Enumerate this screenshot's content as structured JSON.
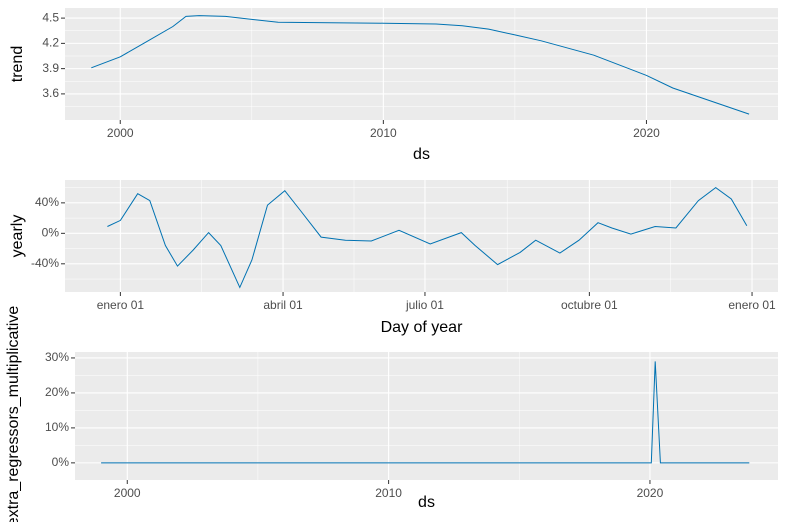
{
  "chart_data": [
    {
      "type": "line",
      "x_label": "ds",
      "y_label": "trend",
      "x": [
        1998.9,
        2000,
        2001,
        2002,
        2002.5,
        2003,
        2004,
        2006,
        2010,
        2012,
        2013,
        2014,
        2015,
        2016,
        2018,
        2020,
        2021,
        2023.9
      ],
      "series": [
        {
          "name": "trend",
          "color": "#0072B2",
          "values": [
            3.91,
            4.04,
            4.22,
            4.4,
            4.52,
            4.53,
            4.52,
            4.45,
            4.44,
            4.43,
            4.41,
            4.37,
            4.3,
            4.23,
            4.06,
            3.82,
            3.67,
            3.36
          ]
        }
      ],
      "xlim": [
        1997.9,
        2025.0
      ],
      "xticks": [
        2000,
        2010,
        2020
      ],
      "ylim": [
        3.29,
        4.62
      ],
      "yticks": [
        3.6,
        3.9,
        4.2,
        4.5
      ],
      "grid": true
    },
    {
      "type": "line",
      "x_label": "Day of year",
      "y_label": "yearly",
      "x": [
        -7.5,
        0,
        10,
        17,
        26,
        33,
        42,
        51,
        58,
        69,
        76,
        85,
        95,
        104,
        116,
        130,
        145,
        161,
        179,
        197,
        205,
        218,
        231,
        240,
        254,
        265,
        276,
        284,
        295,
        309,
        321,
        334,
        344,
        353,
        362
      ],
      "series": [
        {
          "name": "yearly",
          "color": "#0072B2",
          "values": [
            9,
            17,
            52,
            43,
            -16,
            -43,
            -22,
            1,
            -16,
            -71,
            -35,
            37,
            56,
            30,
            -5,
            -9,
            -10,
            4,
            -14,
            1,
            -16,
            -41,
            -25,
            -9,
            -26,
            -9,
            14,
            7,
            -1,
            9,
            7,
            43,
            60,
            45,
            10
          ]
        }
      ],
      "xlim": [
        -32,
        380
      ],
      "xticks": [
        {
          "value": 0,
          "label": "enero 01"
        },
        {
          "value": 94,
          "label": "abril 01"
        },
        {
          "value": 176,
          "label": "julio 01"
        },
        {
          "value": 271,
          "label": "octubre 01"
        },
        {
          "value": 365,
          "label": "enero 01"
        }
      ],
      "ylim": [
        -77,
        70
      ],
      "yticks": [
        {
          "value": -40,
          "label": "-40%"
        },
        {
          "value": 0,
          "label": "0%"
        },
        {
          "value": 40,
          "label": "40%"
        }
      ],
      "grid": true
    },
    {
      "type": "line",
      "x_label": "ds",
      "y_label": "extra_regressors_multiplicative",
      "x": [
        1999.0,
        2020.05,
        2020.2,
        2020.4,
        2023.8
      ],
      "series": [
        {
          "name": "extra_regressors_multiplicative",
          "color": "#0072B2",
          "values": [
            0,
            0,
            29,
            0,
            0
          ]
        }
      ],
      "xlim": [
        1998.0,
        2024.9
      ],
      "xticks": [
        2000,
        2010,
        2020
      ],
      "ylim": [
        -4.9,
        31.7
      ],
      "yticks": [
        {
          "value": 0,
          "label": "0%"
        },
        {
          "value": 10,
          "label": "10%"
        },
        {
          "value": 20,
          "label": "20%"
        },
        {
          "value": 30,
          "label": "30%"
        }
      ],
      "grid": true
    }
  ]
}
